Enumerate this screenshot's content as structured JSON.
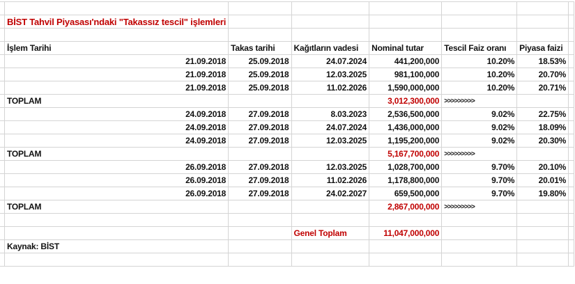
{
  "title": "BİST Tahvil Piyasası'ndaki \"Takassız tescil\" işlemleri",
  "headers": [
    "İşlem Tarihi",
    "Takas tarihi",
    "Kağıtların vadesi",
    "Nominal tutar",
    "Tescil Faiz oranı",
    "Piyasa faizi"
  ],
  "groups": [
    {
      "rows": [
        [
          "21.09.2018",
          "25.09.2018",
          "24.07.2024",
          "441,200,000",
          "10.20%",
          "18.53%"
        ],
        [
          "21.09.2018",
          "25.09.2018",
          "12.03.2025",
          "981,100,000",
          "10.20%",
          "20.70%"
        ],
        [
          "21.09.2018",
          "25.09.2018",
          "11.02.2026",
          "1,590,000,000",
          "10.20%",
          "20.71%"
        ]
      ],
      "total_label": "TOPLAM",
      "total": "3,012,300,000",
      "arrows": ">>>>>>>>>"
    },
    {
      "rows": [
        [
          "24.09.2018",
          "27.09.2018",
          "8.03.2023",
          "2,536,500,000",
          "9.02%",
          "22.75%"
        ],
        [
          "24.09.2018",
          "27.09.2018",
          "24.07.2024",
          "1,436,000,000",
          "9.02%",
          "18.09%"
        ],
        [
          "24.09.2018",
          "27.09.2018",
          "12.03.2025",
          "1,195,200,000",
          "9.02%",
          "20.30%"
        ]
      ],
      "total_label": "TOPLAM",
      "total": "5,167,700,000",
      "arrows": ">>>>>>>>>"
    },
    {
      "rows": [
        [
          "26.09.2018",
          "27.09.2018",
          "12.03.2025",
          "1,028,700,000",
          "9.70%",
          "20.10%"
        ],
        [
          "26.09.2018",
          "27.09.2018",
          "11.02.2026",
          "1,178,800,000",
          "9.70%",
          "20.01%"
        ],
        [
          "26.09.2018",
          "27.09.2018",
          "24.02.2027",
          "659,500,000",
          "9.70%",
          "19.80%"
        ]
      ],
      "total_label": "TOPLAM",
      "total": "2,867,000,000",
      "arrows": ">>>>>>>>>"
    }
  ],
  "grand_total_label": "Genel Toplam",
  "grand_total": "11,047,000,000",
  "source": "Kaynak: BİST",
  "colors": {
    "accent_red": "#c00000",
    "grid": "#d4d4d4"
  }
}
